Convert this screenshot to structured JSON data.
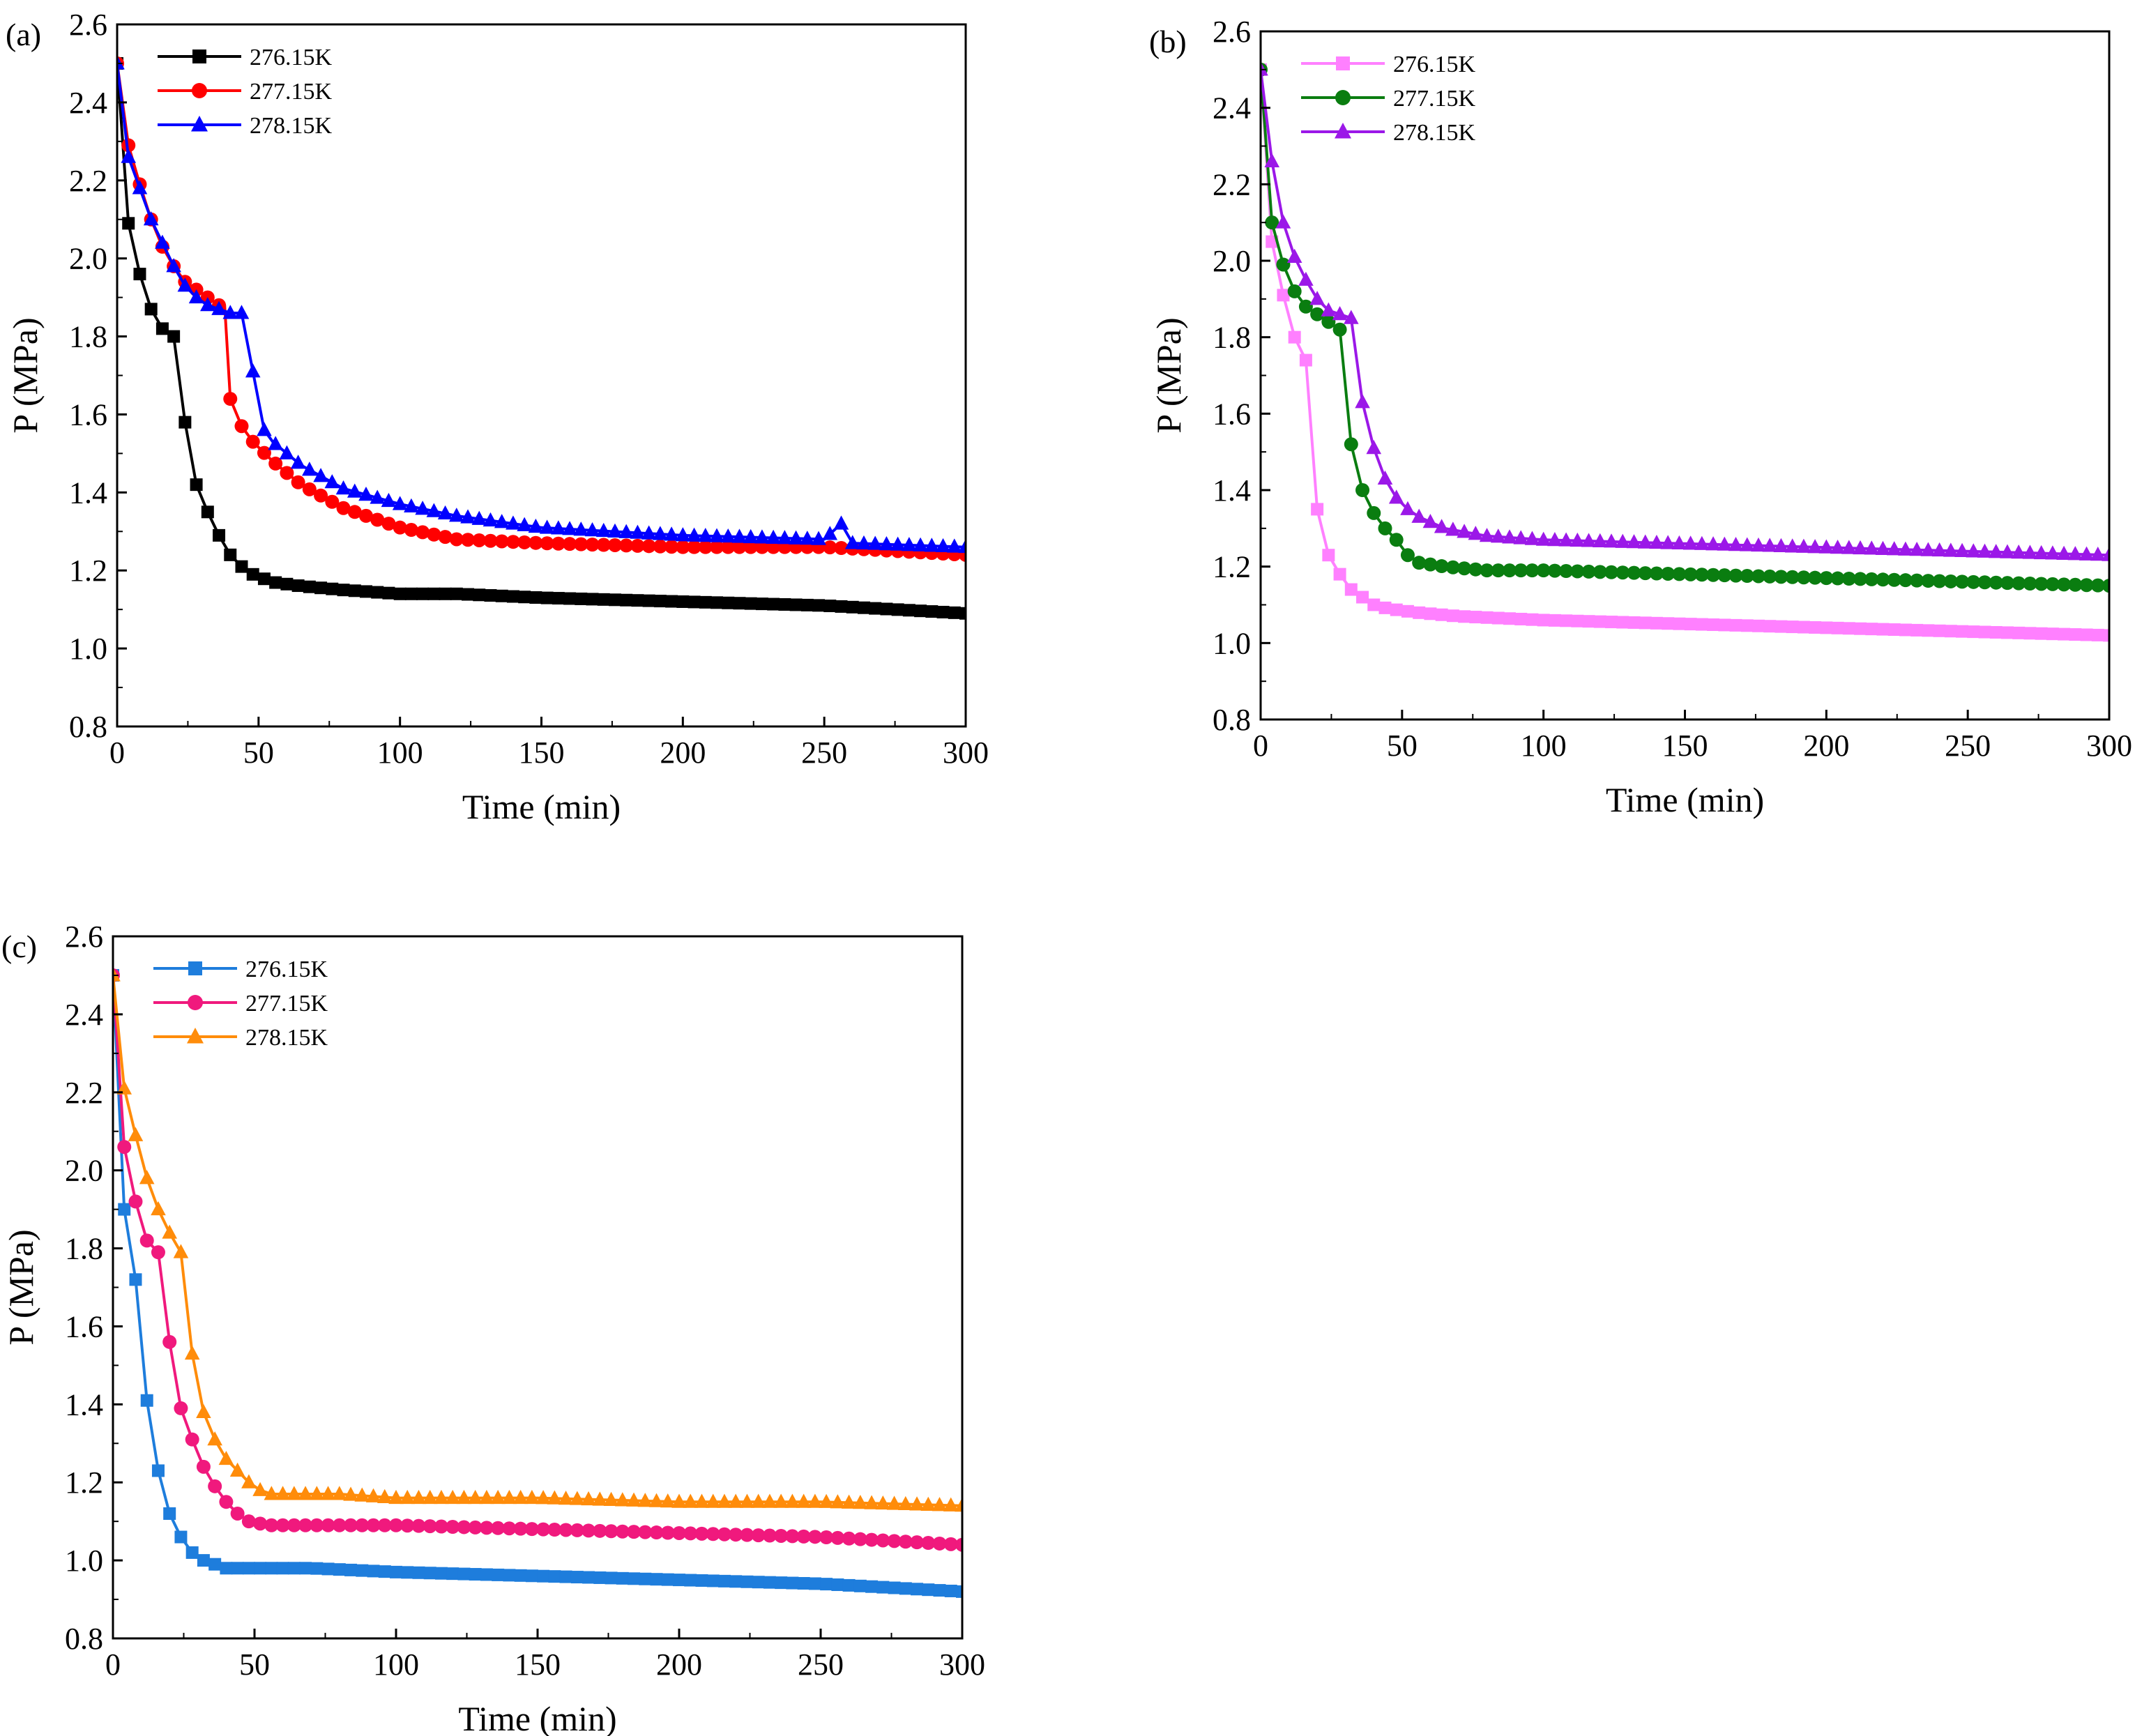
{
  "figure": {
    "panels": [
      {
        "label": "(a)",
        "chart_data": {
          "type": "line",
          "xlabel": "Time (min)",
          "ylabel": "P (MPa)",
          "xlim": [
            0,
            300
          ],
          "ylim": [
            0.8,
            2.6
          ],
          "xticks": [
            0,
            50,
            100,
            150,
            200,
            250,
            300
          ],
          "yticks": [
            0.8,
            1.0,
            1.2,
            1.4,
            1.6,
            1.8,
            2.0,
            2.2,
            2.4,
            2.6
          ],
          "grid": false,
          "legend": "top-left",
          "series": [
            {
              "name": "276.15K",
              "color": "#000000",
              "marker": "square",
              "x": [
                0,
                4,
                8,
                12,
                16,
                20,
                24,
                28,
                32,
                36,
                40,
                44,
                48,
                55,
                65,
                80,
                100,
                120,
                150,
                200,
                250,
                300
              ],
              "y": [
                2.5,
                2.09,
                1.96,
                1.87,
                1.82,
                1.8,
                1.58,
                1.42,
                1.35,
                1.29,
                1.24,
                1.21,
                1.19,
                1.17,
                1.16,
                1.15,
                1.14,
                1.14,
                1.13,
                1.12,
                1.11,
                1.09
              ]
            },
            {
              "name": "277.15K",
              "color": "#ff0000",
              "marker": "circle",
              "x": [
                0,
                4,
                8,
                12,
                16,
                20,
                24,
                28,
                32,
                36,
                38,
                40,
                44,
                48,
                55,
                65,
                80,
                100,
                120,
                150,
                200,
                250,
                300
              ],
              "y": [
                2.5,
                2.29,
                2.19,
                2.1,
                2.03,
                1.98,
                1.94,
                1.92,
                1.9,
                1.88,
                1.88,
                1.64,
                1.57,
                1.53,
                1.48,
                1.42,
                1.36,
                1.31,
                1.28,
                1.27,
                1.26,
                1.26,
                1.24
              ]
            },
            {
              "name": "278.15K",
              "color": "#0000ff",
              "marker": "triangle",
              "x": [
                0,
                4,
                8,
                12,
                16,
                20,
                24,
                28,
                32,
                36,
                40,
                44,
                48,
                52,
                55,
                65,
                80,
                100,
                120,
                150,
                200,
                250,
                256,
                260,
                300
              ],
              "y": [
                2.5,
                2.26,
                2.18,
                2.1,
                2.04,
                1.98,
                1.93,
                1.9,
                1.88,
                1.87,
                1.86,
                1.86,
                1.71,
                1.56,
                1.53,
                1.47,
                1.41,
                1.37,
                1.34,
                1.31,
                1.29,
                1.28,
                1.32,
                1.27,
                1.26
              ]
            }
          ]
        }
      },
      {
        "label": "(b)",
        "chart_data": {
          "type": "line",
          "xlabel": "Time (min)",
          "ylabel": "P (MPa)",
          "xlim": [
            0,
            300
          ],
          "ylim": [
            0.8,
            2.6
          ],
          "xticks": [
            0,
            50,
            100,
            150,
            200,
            250,
            300
          ],
          "yticks": [
            0.8,
            1.0,
            1.2,
            1.4,
            1.6,
            1.8,
            2.0,
            2.2,
            2.4,
            2.6
          ],
          "grid": false,
          "legend": "top-left",
          "series": [
            {
              "name": "276.15K",
              "color": "#ff80ff",
              "marker": "square",
              "x": [
                0,
                4,
                8,
                12,
                16,
                20,
                24,
                28,
                32,
                36,
                40,
                45,
                55,
                70,
                100,
                150,
                200,
                250,
                300
              ],
              "y": [
                2.5,
                2.05,
                1.91,
                1.8,
                1.74,
                1.35,
                1.23,
                1.18,
                1.14,
                1.12,
                1.1,
                1.09,
                1.08,
                1.07,
                1.06,
                1.05,
                1.04,
                1.03,
                1.02
              ]
            },
            {
              "name": "277.15K",
              "color": "#0a7d10",
              "marker": "circle",
              "x": [
                0,
                4,
                8,
                12,
                16,
                20,
                24,
                28,
                32,
                36,
                40,
                44,
                48,
                52,
                56,
                65,
                80,
                100,
                150,
                200,
                250,
                300
              ],
              "y": [
                2.5,
                2.1,
                1.99,
                1.92,
                1.88,
                1.86,
                1.84,
                1.82,
                1.52,
                1.4,
                1.34,
                1.3,
                1.27,
                1.23,
                1.21,
                1.2,
                1.19,
                1.19,
                1.18,
                1.17,
                1.16,
                1.15
              ]
            },
            {
              "name": "278.15K",
              "color": "#9b18e8",
              "marker": "triangle",
              "x": [
                0,
                4,
                8,
                12,
                16,
                20,
                24,
                28,
                32,
                36,
                40,
                44,
                48,
                52,
                56,
                65,
                80,
                100,
                150,
                200,
                250,
                300
              ],
              "y": [
                2.5,
                2.26,
                2.1,
                2.01,
                1.95,
                1.9,
                1.87,
                1.86,
                1.85,
                1.63,
                1.51,
                1.43,
                1.38,
                1.35,
                1.33,
                1.3,
                1.28,
                1.27,
                1.26,
                1.25,
                1.24,
                1.23
              ]
            }
          ]
        }
      },
      {
        "label": "(c)",
        "chart_data": {
          "type": "line",
          "xlabel": "Time (min)",
          "ylabel": "P (MPa)",
          "xlim": [
            0,
            300
          ],
          "ylim": [
            0.8,
            2.6
          ],
          "xticks": [
            0,
            50,
            100,
            150,
            200,
            250,
            300
          ],
          "yticks": [
            0.8,
            1.0,
            1.2,
            1.4,
            1.6,
            1.8,
            2.0,
            2.2,
            2.4,
            2.6
          ],
          "grid": false,
          "legend": "top-left",
          "series": [
            {
              "name": "276.15K",
              "color": "#1e7ddc",
              "marker": "square",
              "x": [
                0,
                4,
                8,
                12,
                16,
                20,
                24,
                28,
                32,
                36,
                40,
                45,
                55,
                70,
                100,
                150,
                200,
                250,
                300
              ],
              "y": [
                2.5,
                1.9,
                1.72,
                1.41,
                1.23,
                1.12,
                1.06,
                1.02,
                1.0,
                0.99,
                0.98,
                0.98,
                0.98,
                0.98,
                0.97,
                0.96,
                0.95,
                0.94,
                0.92
              ]
            },
            {
              "name": "277.15K",
              "color": "#f0197d",
              "marker": "circle",
              "x": [
                0,
                4,
                8,
                12,
                16,
                20,
                24,
                28,
                32,
                36,
                40,
                44,
                48,
                55,
                70,
                100,
                150,
                200,
                250,
                300
              ],
              "y": [
                2.5,
                2.06,
                1.92,
                1.82,
                1.79,
                1.56,
                1.39,
                1.31,
                1.24,
                1.19,
                1.15,
                1.12,
                1.1,
                1.09,
                1.09,
                1.09,
                1.08,
                1.07,
                1.06,
                1.04
              ]
            },
            {
              "name": "278.15K",
              "color": "#ff8c0a",
              "marker": "triangle",
              "x": [
                0,
                4,
                8,
                12,
                16,
                20,
                24,
                28,
                32,
                36,
                40,
                44,
                48,
                52,
                56,
                65,
                80,
                100,
                150,
                200,
                250,
                300
              ],
              "y": [
                2.5,
                2.21,
                2.09,
                1.98,
                1.9,
                1.84,
                1.79,
                1.53,
                1.38,
                1.31,
                1.26,
                1.23,
                1.2,
                1.18,
                1.17,
                1.17,
                1.17,
                1.16,
                1.16,
                1.15,
                1.15,
                1.14
              ]
            }
          ]
        }
      }
    ]
  }
}
